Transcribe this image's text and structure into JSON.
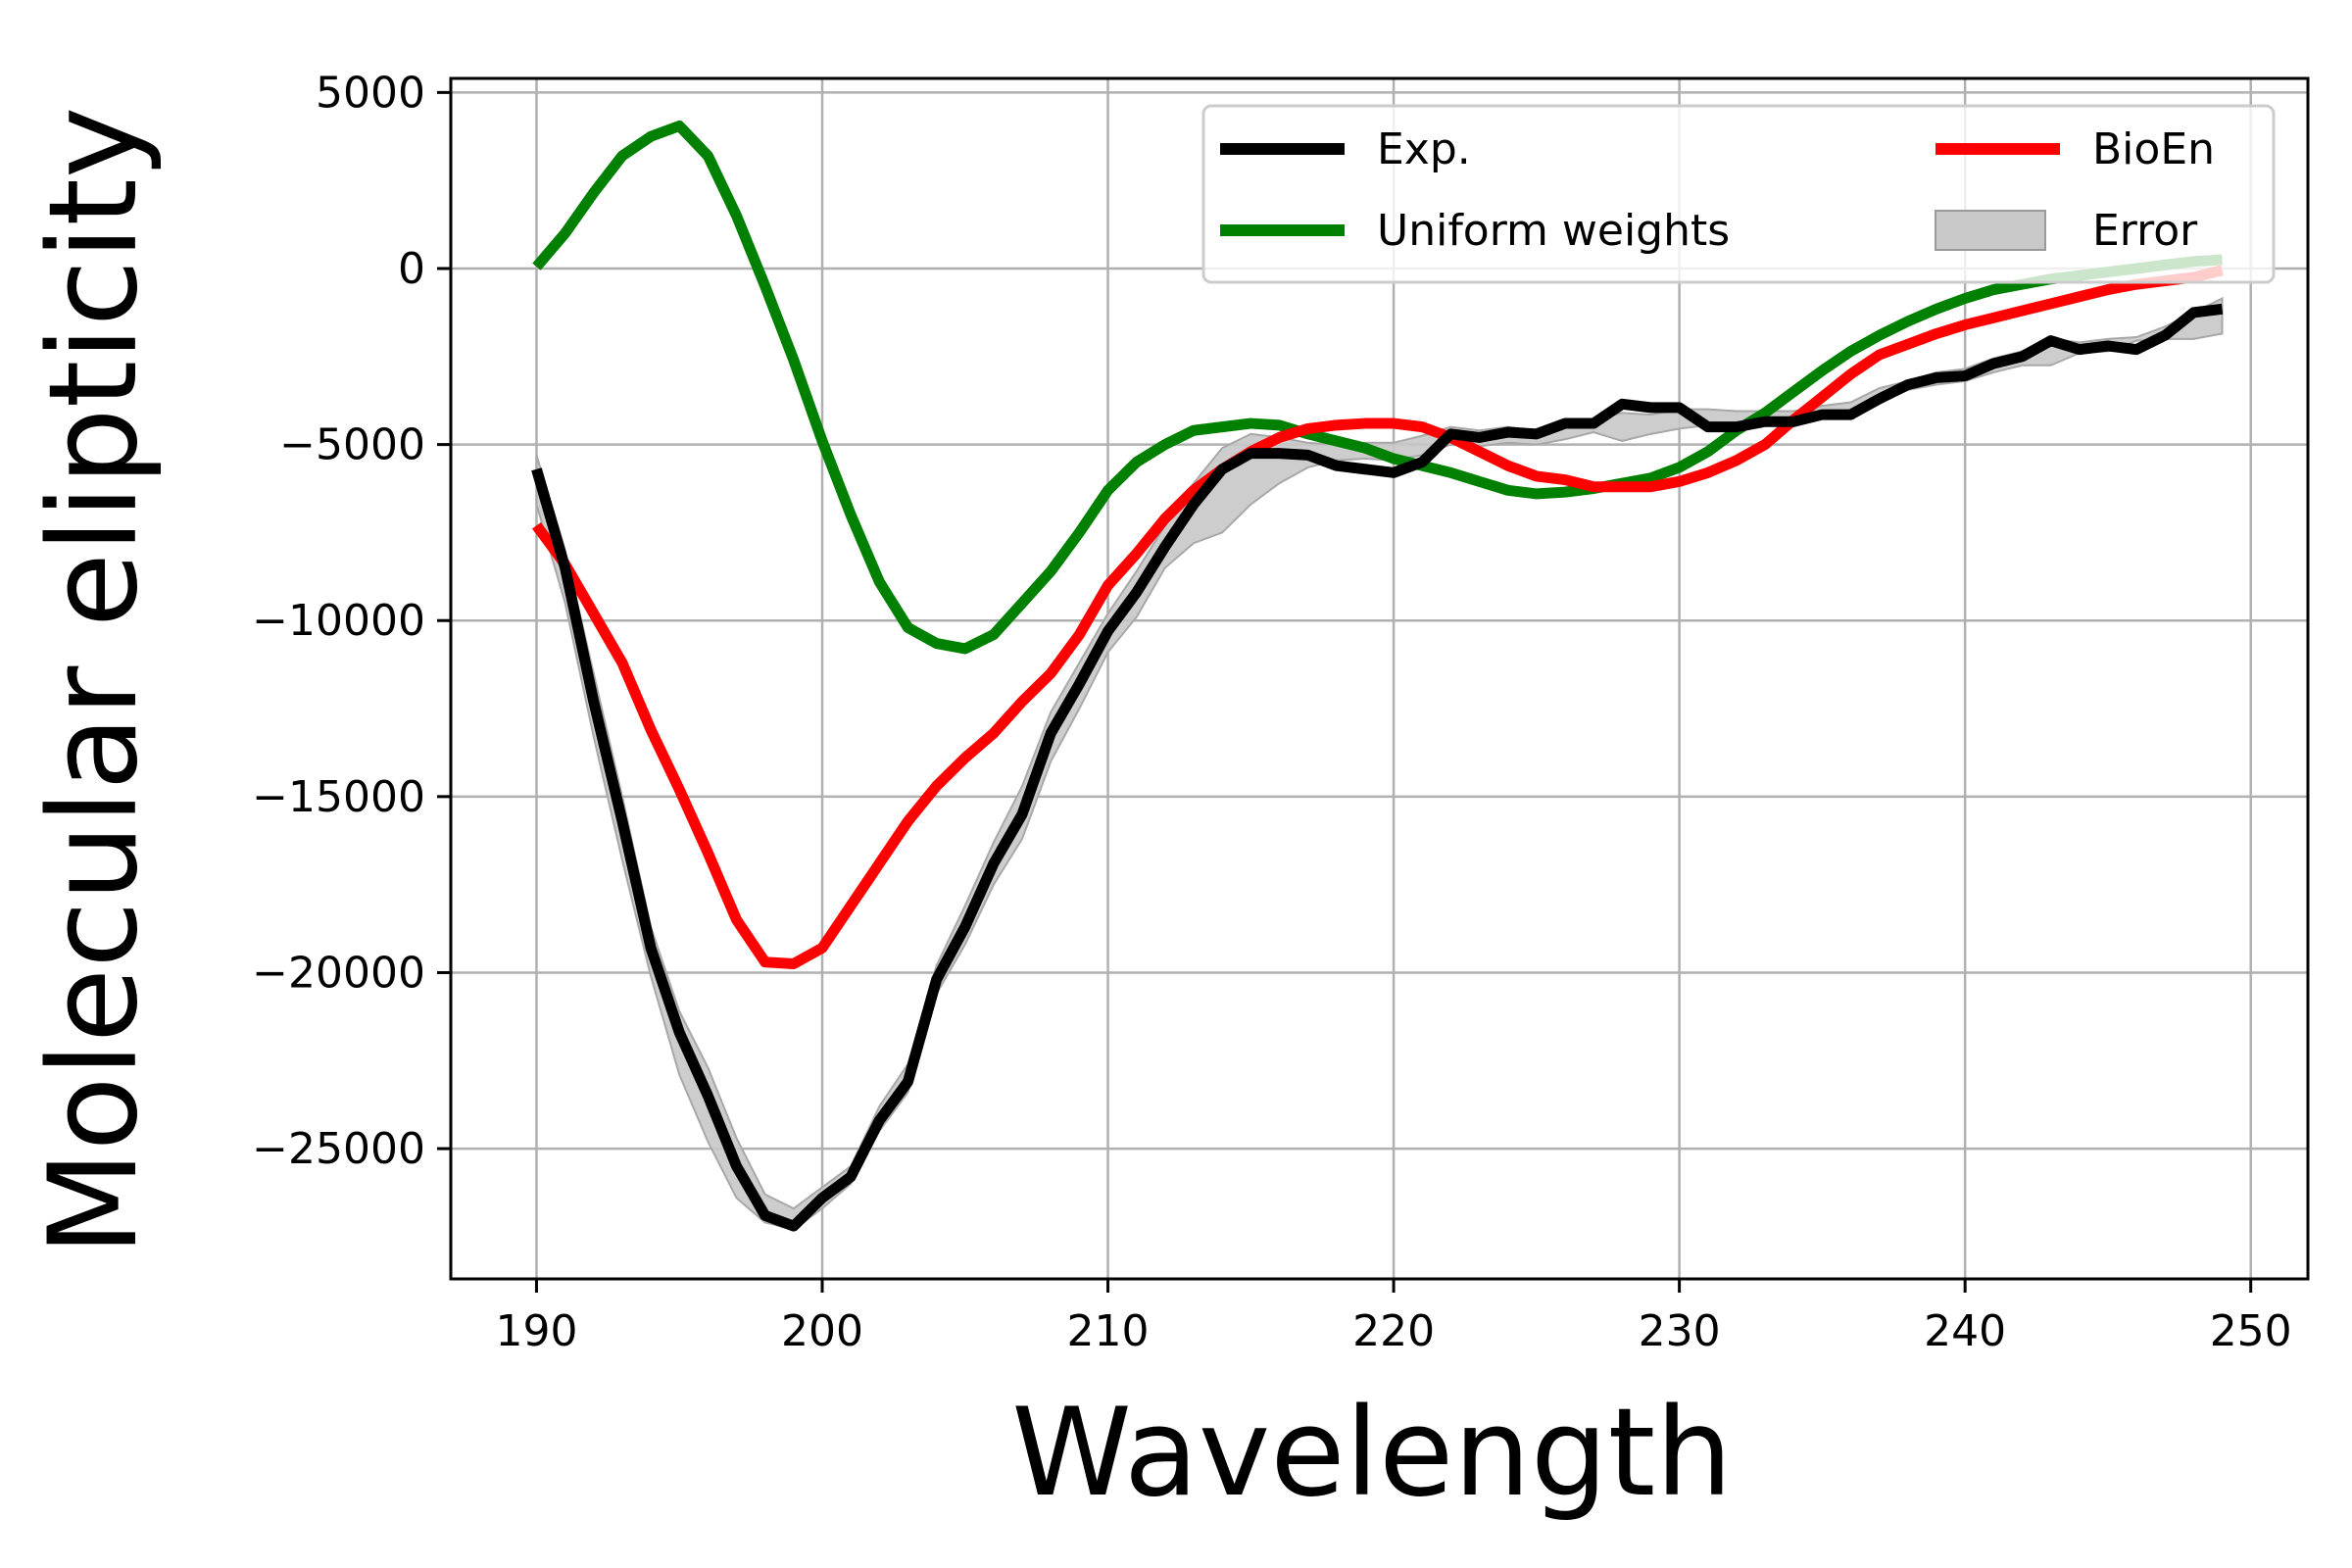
{
  "chart_data": {
    "type": "line",
    "title": "",
    "xlabel": "Wavelength",
    "ylabel": "Molecular elipticity",
    "xlim": [
      187,
      252
    ],
    "ylim": [
      -28700,
      5400
    ],
    "xticks": [
      190,
      200,
      210,
      220,
      230,
      240,
      250
    ],
    "xtick_labels": [
      "190",
      "200",
      "210",
      "220",
      "230",
      "240",
      "250"
    ],
    "yticks": [
      5000,
      0,
      -5000,
      -10000,
      -15000,
      -20000,
      -25000
    ],
    "ytick_labels": [
      "5000",
      "0",
      "−5000",
      "−10000",
      "−15000",
      "−20000",
      "−25000"
    ],
    "grid": true,
    "legend_position": "top-right",
    "legend_columns": 2,
    "x": [
      190,
      191,
      192,
      193,
      194,
      195,
      196,
      197,
      198,
      199,
      200,
      201,
      202,
      203,
      204,
      205,
      206,
      207,
      208,
      209,
      210,
      211,
      212,
      213,
      214,
      215,
      216,
      217,
      218,
      219,
      220,
      221,
      222,
      223,
      224,
      225,
      226,
      227,
      228,
      229,
      230,
      231,
      232,
      233,
      234,
      235,
      236,
      237,
      238,
      239,
      240,
      241,
      242,
      243,
      244,
      245,
      246,
      247,
      248,
      249
    ],
    "series": [
      {
        "name": "Exp.",
        "color": "#000000",
        "kind": "line",
        "values": [
          -5700,
          -8500,
          -12300,
          -15700,
          -19300,
          -21700,
          -23500,
          -25500,
          -26900,
          -27200,
          -26400,
          -25800,
          -24200,
          -23100,
          -20200,
          -18700,
          -16900,
          -15500,
          -13200,
          -11800,
          -10300,
          -9200,
          -7900,
          -6700,
          -5700,
          -5250,
          -5250,
          -5300,
          -5600,
          -5700,
          -5800,
          -5500,
          -4700,
          -4800,
          -4650,
          -4700,
          -4400,
          -4400,
          -3850,
          -3950,
          -3950,
          -4500,
          -4500,
          -4350,
          -4350,
          -4150,
          -4150,
          -3700,
          -3300,
          -3100,
          -3050,
          -2700,
          -2500,
          -2050,
          -2300,
          -2200,
          -2300,
          -1900,
          -1250,
          -1150
        ]
      },
      {
        "name": "Uniform weights",
        "color": "#008000",
        "kind": "line",
        "values": [
          50,
          1000,
          2150,
          3200,
          3750,
          4050,
          3200,
          1500,
          -500,
          -2600,
          -4900,
          -7000,
          -8900,
          -10200,
          -10650,
          -10800,
          -10400,
          -9500,
          -8600,
          -7500,
          -6300,
          -5500,
          -5000,
          -4600,
          -4500,
          -4400,
          -4450,
          -4700,
          -4900,
          -5100,
          -5400,
          -5600,
          -5800,
          -6050,
          -6300,
          -6400,
          -6350,
          -6250,
          -6100,
          -5950,
          -5650,
          -5200,
          -4600,
          -4100,
          -3500,
          -2900,
          -2350,
          -1900,
          -1500,
          -1150,
          -850,
          -600,
          -450,
          -300,
          -200,
          -100,
          0,
          100,
          200,
          250
        ]
      },
      {
        "name": "BioEn",
        "color": "#ff0000",
        "kind": "line",
        "values": [
          -7300,
          -8400,
          -9800,
          -11200,
          -13100,
          -14800,
          -16600,
          -18500,
          -19700,
          -19750,
          -19300,
          -18100,
          -16900,
          -15700,
          -14700,
          -13900,
          -13200,
          -12300,
          -11500,
          -10400,
          -9000,
          -8100,
          -7100,
          -6300,
          -5700,
          -5200,
          -4800,
          -4550,
          -4450,
          -4400,
          -4400,
          -4500,
          -4800,
          -5200,
          -5600,
          -5900,
          -6000,
          -6200,
          -6200,
          -6200,
          -6050,
          -5800,
          -5450,
          -5000,
          -4300,
          -3650,
          -3000,
          -2450,
          -2150,
          -1850,
          -1600,
          -1400,
          -1200,
          -1000,
          -800,
          -600,
          -450,
          -350,
          -250,
          -50
        ]
      },
      {
        "name": "Error",
        "color": "#c8c8c8",
        "kind": "band",
        "upper": [
          -5300,
          -8000,
          -11500,
          -15000,
          -18700,
          -21100,
          -22700,
          -24700,
          -26300,
          -26700,
          -26100,
          -25500,
          -23800,
          -22600,
          -19800,
          -18100,
          -16300,
          -14700,
          -12600,
          -11200,
          -9800,
          -8600,
          -7300,
          -6100,
          -5100,
          -4700,
          -4800,
          -4950,
          -5000,
          -4950,
          -4950,
          -4750,
          -4500,
          -4600,
          -4500,
          -4600,
          -4400,
          -4300,
          -4100,
          -4150,
          -4000,
          -4000,
          -4050,
          -4050,
          -4050,
          -3900,
          -3800,
          -3400,
          -3200,
          -2950,
          -2850,
          -2550,
          -2350,
          -2000,
          -2100,
          -2000,
          -1950,
          -1650,
          -1250,
          -850
        ],
        "lower": [
          -6700,
          -9500,
          -13300,
          -16800,
          -20100,
          -22900,
          -24800,
          -26400,
          -27100,
          -27300,
          -26700,
          -26000,
          -24500,
          -23400,
          -20600,
          -19200,
          -17500,
          -16200,
          -14000,
          -12500,
          -10900,
          -9900,
          -8500,
          -7800,
          -7500,
          -6700,
          -6100,
          -5650,
          -5450,
          -5400,
          -5450,
          -5300,
          -5000,
          -5050,
          -4950,
          -5000,
          -4850,
          -4650,
          -4900,
          -4700,
          -4550,
          -4450,
          -4400,
          -4350,
          -4300,
          -4250,
          -4150,
          -3800,
          -3450,
          -3300,
          -3200,
          -2950,
          -2750,
          -2750,
          -2400,
          -2350,
          -2050,
          -2000,
          -2000,
          -1850
        ]
      }
    ]
  }
}
